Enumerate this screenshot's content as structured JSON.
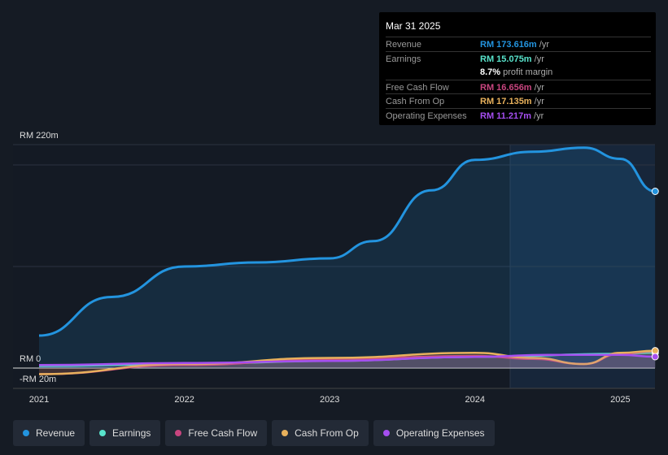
{
  "tooltip": {
    "date": "Mar 31 2025",
    "rows": [
      {
        "label": "Revenue",
        "value": "RM 173.616m",
        "unit": "/yr",
        "color": "#2394df"
      },
      {
        "label": "Earnings",
        "value": "RM 15.075m",
        "unit": "/yr",
        "color": "#58e3cb"
      },
      {
        "label": "",
        "value": "8.7%",
        "unit": "profit margin",
        "color": "#ffffff"
      },
      {
        "label": "Free Cash Flow",
        "value": "RM 16.656m",
        "unit": "/yr",
        "color": "#c8457f"
      },
      {
        "label": "Cash From Op",
        "value": "RM 17.135m",
        "unit": "/yr",
        "color": "#e8b15c"
      },
      {
        "label": "Operating Expenses",
        "value": "RM 11.217m",
        "unit": "/yr",
        "color": "#a54ef0"
      }
    ]
  },
  "chart_data": {
    "type": "line",
    "ylim": [
      -20,
      220
    ],
    "xlim": [
      2020.9,
      2025.24
    ],
    "y_tick_labels": [
      "RM 220m",
      "RM 0",
      "-RM 20m"
    ],
    "y_ticks": [
      220,
      0,
      -20
    ],
    "x_tick_labels": [
      "2021",
      "2022",
      "2023",
      "2024",
      "2025"
    ],
    "x_ticks": [
      2021,
      2022,
      2023,
      2024,
      2025
    ],
    "series": [
      {
        "name": "Revenue",
        "color": "#2394df",
        "points": [
          [
            2021,
            32
          ],
          [
            2021.5,
            70
          ],
          [
            2022,
            100
          ],
          [
            2022.5,
            104
          ],
          [
            2023,
            108
          ],
          [
            2023.3,
            125
          ],
          [
            2023.7,
            175
          ],
          [
            2024,
            205
          ],
          [
            2024.4,
            213
          ],
          [
            2024.75,
            217
          ],
          [
            2025,
            206
          ],
          [
            2025.24,
            174
          ]
        ]
      },
      {
        "name": "Earnings",
        "color": "#58e3cb",
        "points": [
          [
            2021,
            2
          ],
          [
            2022,
            4
          ],
          [
            2023,
            7
          ],
          [
            2024,
            11
          ],
          [
            2025,
            14
          ],
          [
            2025.24,
            15.1
          ]
        ]
      },
      {
        "name": "Free Cash Flow",
        "color": "#c8457f",
        "points": [
          [
            2021,
            -6
          ],
          [
            2022,
            3
          ],
          [
            2023,
            9
          ],
          [
            2024,
            12
          ],
          [
            2024.4,
            9
          ],
          [
            2024.75,
            4
          ],
          [
            2025,
            14
          ],
          [
            2025.24,
            16.7
          ]
        ]
      },
      {
        "name": "Cash From Op",
        "color": "#e8b15c",
        "points": [
          [
            2021,
            -6
          ],
          [
            2022,
            4
          ],
          [
            2023,
            10
          ],
          [
            2024,
            15
          ],
          [
            2024.4,
            10
          ],
          [
            2024.75,
            4
          ],
          [
            2025,
            15
          ],
          [
            2025.24,
            17.1
          ]
        ]
      },
      {
        "name": "Operating Expenses",
        "color": "#a54ef0",
        "points": [
          [
            2021,
            3
          ],
          [
            2022,
            5
          ],
          [
            2023,
            7
          ],
          [
            2024,
            11
          ],
          [
            2024.5,
            13
          ],
          [
            2025,
            13
          ],
          [
            2025.24,
            11.2
          ]
        ]
      }
    ]
  },
  "legend": [
    "Revenue",
    "Earnings",
    "Free Cash Flow",
    "Cash From Op",
    "Operating Expenses"
  ]
}
